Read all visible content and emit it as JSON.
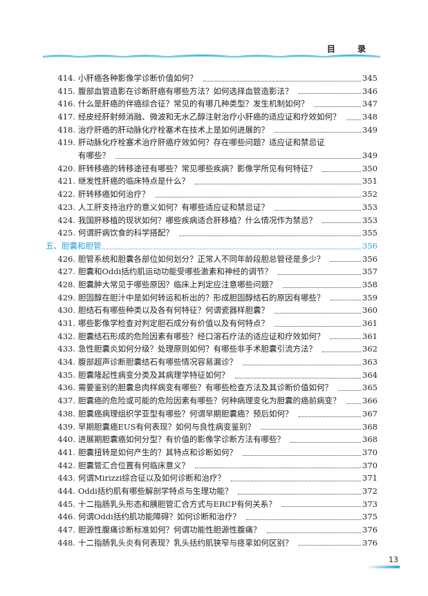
{
  "header": {
    "title": "目 录"
  },
  "colors": {
    "accent": "#2a9fd8",
    "text": "#222222"
  },
  "entries_a": [
    {
      "num": "414.",
      "title": "小肝癌各种影像学诊断价值如何？",
      "page": "345"
    },
    {
      "num": "415.",
      "title": "腹部血管造影在诊断肝癌有哪些方法？如何选择血管造影法？",
      "page": "346"
    },
    {
      "num": "416.",
      "title": "什么是肝癌的伴癌综合征？常见的有哪几种类型？发生机制如何？",
      "page": "347"
    },
    {
      "num": "417.",
      "title": "经皮经肝射频消融、微波和无水乙醇注射治疗小肝癌的适应证和疗效如何？",
      "page": "348"
    },
    {
      "num": "418.",
      "title": "治疗肝癌的肝动脉化疗栓塞术在技术上是如何进展的？",
      "page": "349"
    }
  ],
  "entry_419": {
    "num": "419.",
    "title_line1": "肝动脉化疗栓塞术治疗肝癌疗效如何？存在哪些问题？适应证和禁忌证",
    "title_line2": "有哪些？",
    "page": "349"
  },
  "entries_b": [
    {
      "num": "420.",
      "title": "肝转移癌的转移途径有哪些？常见哪些疾病？影像学所见有何特征？",
      "page": "350"
    },
    {
      "num": "421.",
      "title": "继发性肝癌的临床特点是什么？",
      "page": "351"
    },
    {
      "num": "422.",
      "title": "肝转移癌如何治疗？",
      "page": "352"
    },
    {
      "num": "423.",
      "title": "人工肝支持治疗的意义如何？有哪些适应证和禁忌证？",
      "page": "353"
    },
    {
      "num": "424.",
      "title": "我国肝移植的现状如何？哪些疾病适合肝移植？什么情况作为禁忌？",
      "page": "353"
    },
    {
      "num": "425.",
      "title": "何谓肝病饮食的科学搭配？",
      "page": "355"
    }
  ],
  "section": {
    "title": "五、胆囊和胆管",
    "page": "356"
  },
  "entries_c": [
    {
      "num": "426.",
      "title": "胆管系统和胆囊各部位如何划分？正常人不同年龄段胆总管径是多少？",
      "page": "356"
    },
    {
      "num": "427.",
      "title": "胆囊和Oddi括约肌运动功能受哪些激素和神经的调节？",
      "page": "357"
    },
    {
      "num": "428.",
      "title": "胆囊肿大常见于哪些原因？临床上判定应注意哪些问题？",
      "page": "358"
    },
    {
      "num": "429.",
      "title": "胆固醇在胆汁中是如何转运和析出的？形成胆固醇结石的原因有哪些？",
      "page": "359"
    },
    {
      "num": "430.",
      "title": "胆结石有哪些种类以及各有何特征？何谓瓷器样胆囊？",
      "page": "360"
    },
    {
      "num": "431.",
      "title": "哪些影像学检查对判定胆石成分有价值以及有何特点？",
      "page": "361"
    },
    {
      "num": "432.",
      "title": "胆囊结石形成的危险因素有哪些？经口溶石疗法的适应证和疗效如何？",
      "page": "361"
    },
    {
      "num": "433.",
      "title": "急性胆囊炎如何分级？处理原则如何？有哪些非手术胆囊引流方法？",
      "page": "362"
    },
    {
      "num": "434.",
      "title": "腹部超声诊断胆囊结石有哪些情况容易漏诊？",
      "page": "363"
    },
    {
      "num": "435.",
      "title": "胆囊隆起性病变分类及其病理学特征如何？",
      "page": "364"
    },
    {
      "num": "436.",
      "title": "需要鉴别的胆囊息肉样病变有哪些？有哪些检查方法及其诊断价值如何？",
      "page": "365"
    },
    {
      "num": "437.",
      "title": "胆囊癌的危险或可能的危险因素有哪些？何种病理变化为胆囊的癌前病变？",
      "page": "366"
    },
    {
      "num": "438.",
      "title": "胆囊癌病理组织学亚型有哪些？何谓早期胆囊癌？预后如何？",
      "page": "367"
    },
    {
      "num": "439.",
      "title": "早期胆囊癌EUS有何表现？如何与良性病变鉴别？",
      "page": "368"
    },
    {
      "num": "440.",
      "title": "进展期胆囊癌如何分型？有价值的影像学诊断方法有哪些？",
      "page": "368"
    },
    {
      "num": "441.",
      "title": "胆囊扭转是如何产生的？其特点和诊断如何？",
      "page": "370"
    },
    {
      "num": "442.",
      "title": "胆囊管汇合位置有何临床意义？",
      "page": "370"
    },
    {
      "num": "443.",
      "title": "何谓Mirizzi综合征以及如何诊断和治疗？",
      "page": "371"
    },
    {
      "num": "444.",
      "title": "Oddi括约肌有哪些解剖学特点与生理功能？",
      "page": "372"
    },
    {
      "num": "445.",
      "title": "十二指肠乳头形态和胰胆管汇合方式与ERCP有何关系？",
      "page": "373"
    },
    {
      "num": "446.",
      "title": "何谓Oddi括约肌功能障碍？如何诊断和治疗？",
      "page": "375"
    },
    {
      "num": "447.",
      "title": "胆源性腹痛诊断标准如何？何谓功能性胆源性腹痛？",
      "page": "376"
    },
    {
      "num": "448.",
      "title": "十二指肠乳头炎有何表现？乳头括约肌狭窄与痉挛如何区别？",
      "page": "376"
    }
  ],
  "footer": {
    "page_number": "13"
  }
}
